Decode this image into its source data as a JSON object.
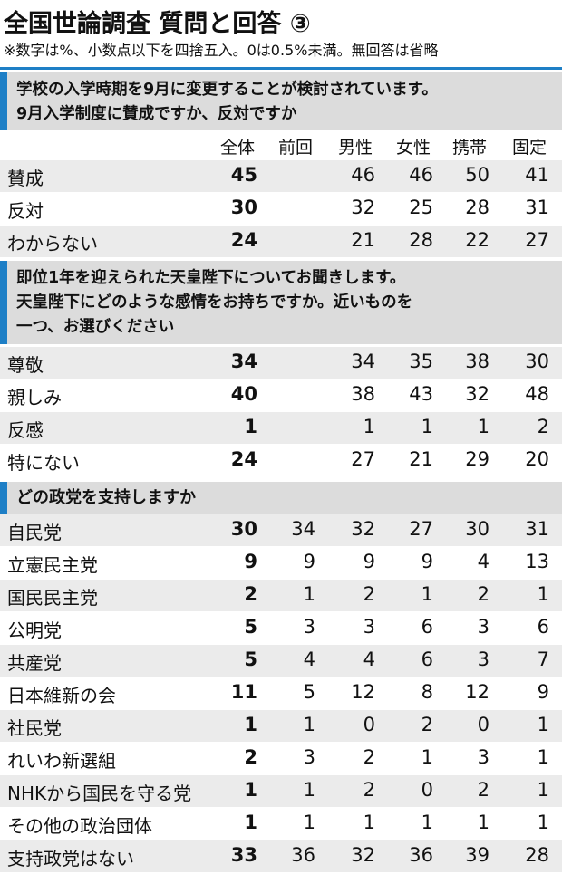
{
  "title": "全国世論調査 質問と回答 ③",
  "note": "※数字は%、小数点以下を四捨五入。0は0.5%未満。無回答は省略",
  "columns": [
    "全体",
    "前回",
    "男性",
    "女性",
    "携帯",
    "固定"
  ],
  "sections": [
    {
      "question": [
        "学校の入学時期を9月に変更することが検討されています。",
        "9月入学制度に賛成ですか、反対ですか"
      ],
      "rows": [
        {
          "label": "賛成",
          "values": [
            "45",
            "",
            "46",
            "46",
            "50",
            "41"
          ]
        },
        {
          "label": "反対",
          "values": [
            "30",
            "",
            "32",
            "25",
            "28",
            "31"
          ]
        },
        {
          "label": "わからない",
          "values": [
            "24",
            "",
            "21",
            "28",
            "22",
            "27"
          ]
        }
      ]
    },
    {
      "question": [
        "即位1年を迎えられた天皇陛下についてお聞きします。",
        "天皇陛下にどのような感情をお持ちですか。近いものを",
        "一つ、お選びください"
      ],
      "rows": [
        {
          "label": "尊敬",
          "values": [
            "34",
            "",
            "34",
            "35",
            "38",
            "30"
          ]
        },
        {
          "label": "親しみ",
          "values": [
            "40",
            "",
            "38",
            "43",
            "32",
            "48"
          ]
        },
        {
          "label": "反感",
          "values": [
            "1",
            "",
            "1",
            "1",
            "1",
            "2"
          ]
        },
        {
          "label": "特にない",
          "values": [
            "24",
            "",
            "27",
            "21",
            "29",
            "20"
          ]
        }
      ]
    },
    {
      "question": [
        "どの政党を支持しますか"
      ],
      "rows": [
        {
          "label": "自民党",
          "values": [
            "30",
            "34",
            "32",
            "27",
            "30",
            "31"
          ]
        },
        {
          "label": "立憲民主党",
          "values": [
            "9",
            "9",
            "9",
            "9",
            "4",
            "13"
          ]
        },
        {
          "label": "国民民主党",
          "values": [
            "2",
            "1",
            "2",
            "1",
            "2",
            "1"
          ]
        },
        {
          "label": "公明党",
          "values": [
            "5",
            "3",
            "3",
            "6",
            "3",
            "6"
          ]
        },
        {
          "label": "共産党",
          "values": [
            "5",
            "4",
            "4",
            "6",
            "3",
            "7"
          ]
        },
        {
          "label": "日本維新の会",
          "values": [
            "11",
            "5",
            "12",
            "8",
            "12",
            "9"
          ]
        },
        {
          "label": "社民党",
          "values": [
            "1",
            "1",
            "0",
            "2",
            "0",
            "1"
          ]
        },
        {
          "label": "れいわ新選組",
          "values": [
            "2",
            "3",
            "2",
            "1",
            "3",
            "1"
          ]
        },
        {
          "label": "NHKから国民を守る党",
          "values": [
            "1",
            "1",
            "2",
            "0",
            "2",
            "1"
          ]
        },
        {
          "label": "その他の政治団体",
          "values": [
            "1",
            "1",
            "1",
            "1",
            "1",
            "1"
          ]
        },
        {
          "label": "支持政党はない",
          "values": [
            "33",
            "36",
            "32",
            "36",
            "39",
            "28"
          ]
        }
      ]
    }
  ]
}
